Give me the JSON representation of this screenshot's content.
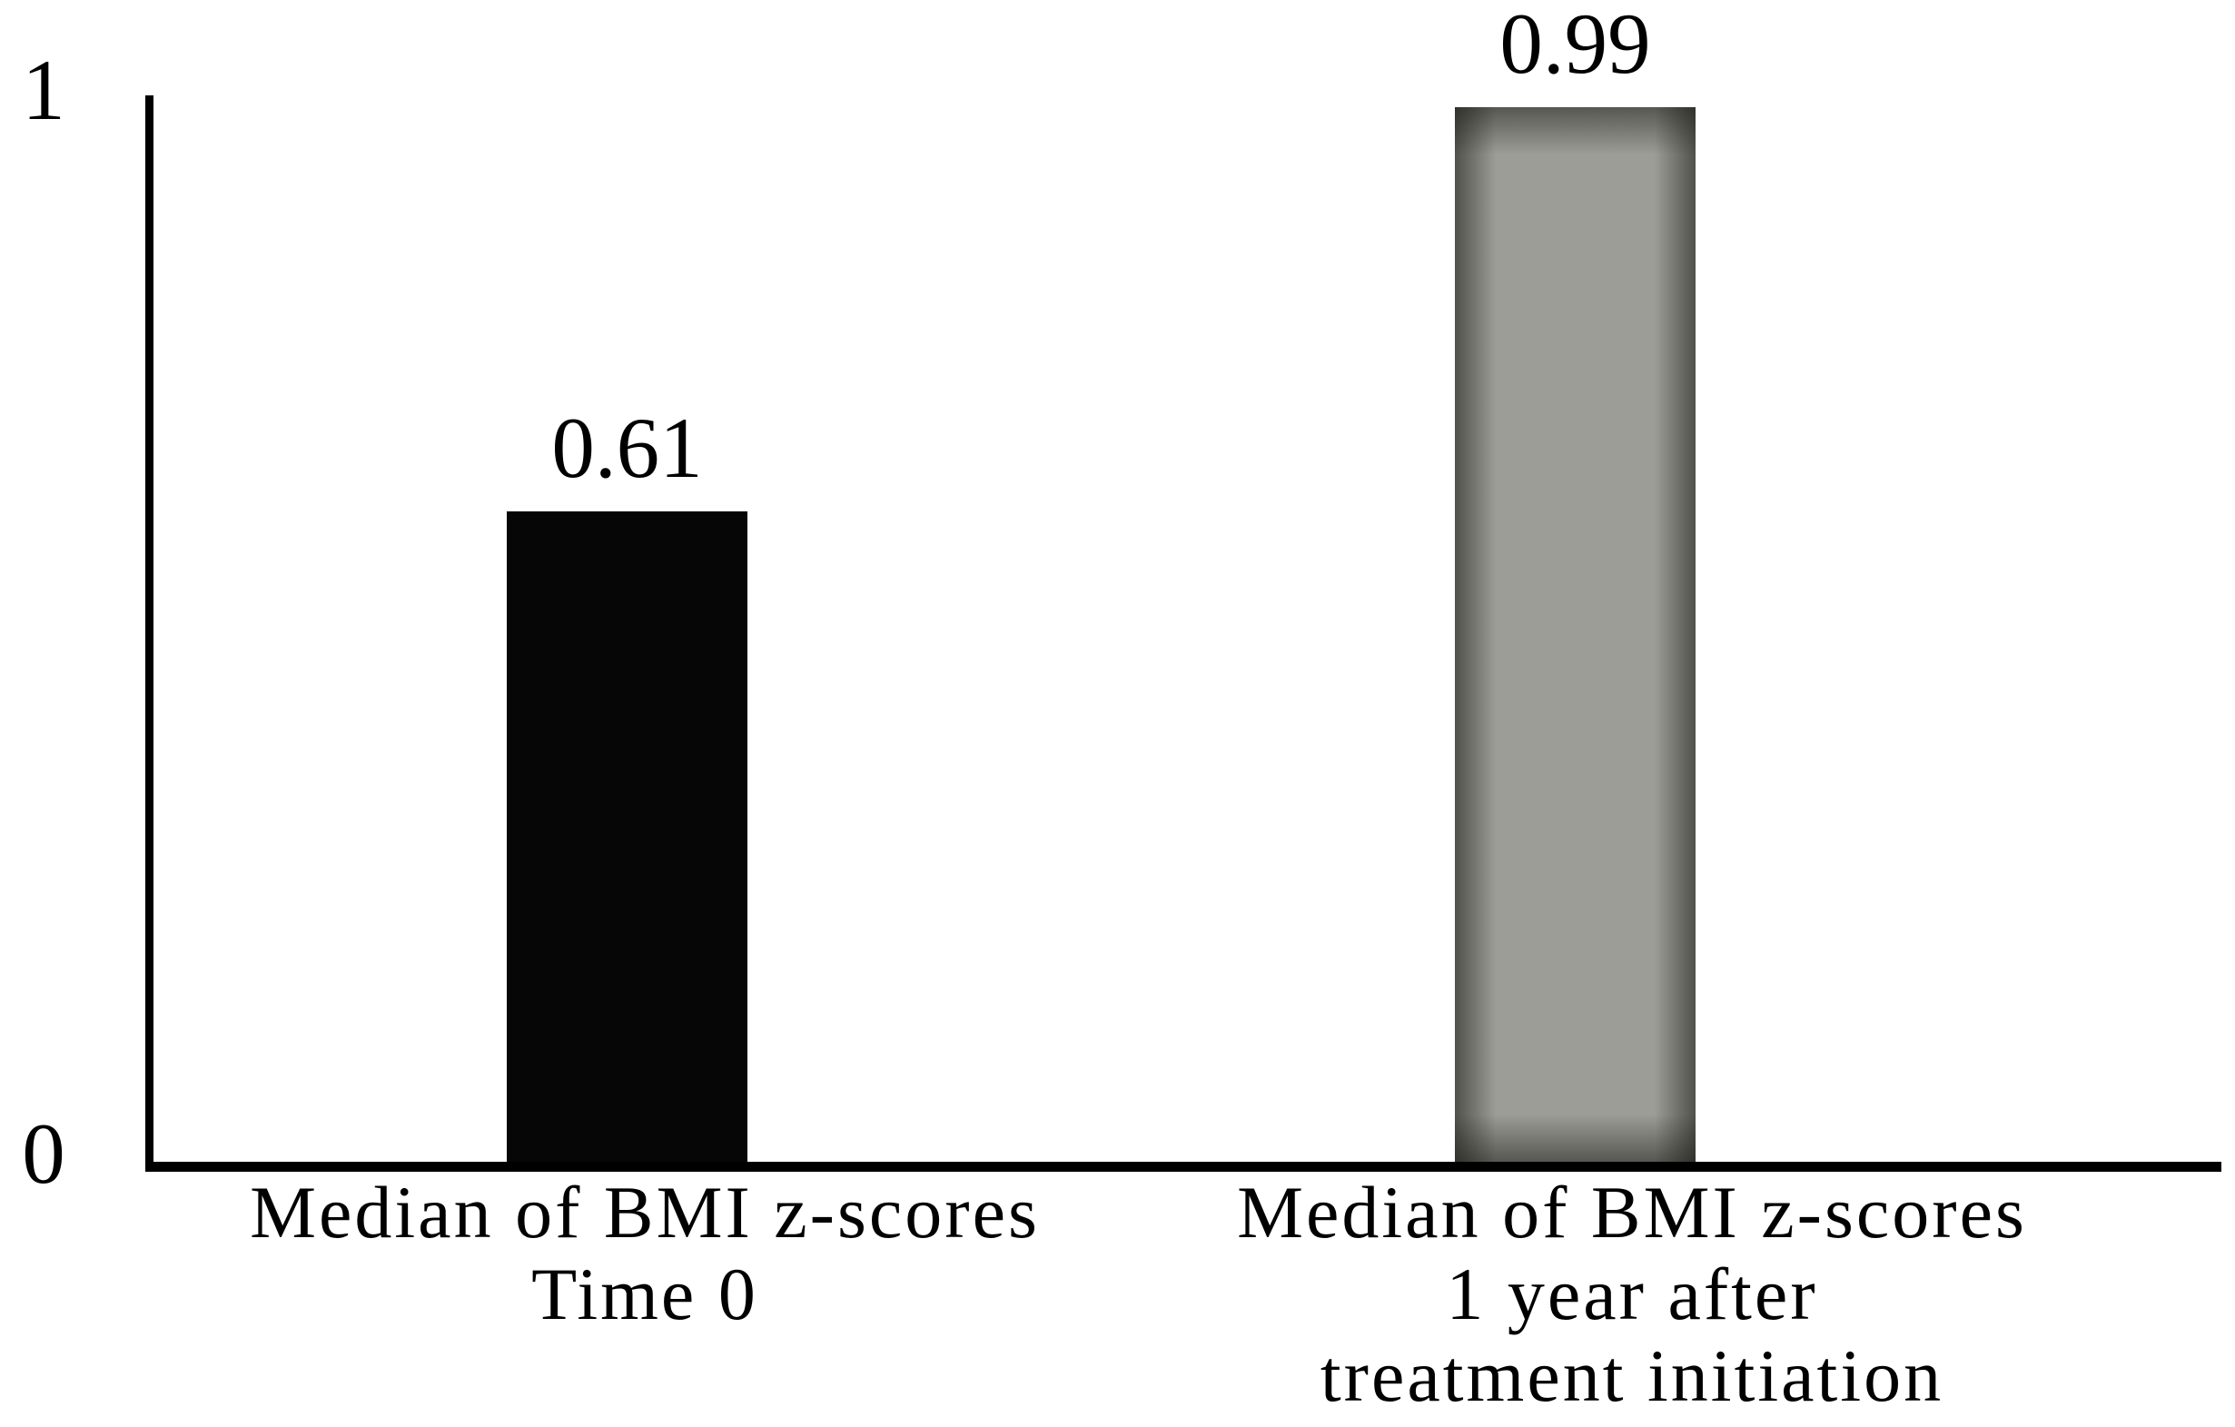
{
  "chart_data": {
    "type": "bar",
    "title": "",
    "xlabel": "",
    "ylabel": "",
    "ylim": [
      0,
      1
    ],
    "grid": false,
    "legend_position": "none",
    "yticks": [
      {
        "value": 1,
        "label": "1"
      },
      {
        "value": 0,
        "label": "0"
      }
    ],
    "categories": [
      {
        "lines": [
          "Median of BMI z-scores",
          "Time 0"
        ]
      },
      {
        "lines": [
          "Median of BMI z-scores",
          "1 year after",
          "treatment initiation"
        ]
      }
    ],
    "values": [
      0.61,
      0.99
    ],
    "value_labels": [
      "0.61",
      "0.99"
    ],
    "bar_colors": [
      "#060606",
      "#9d9d97"
    ],
    "axis_color": "#000000"
  }
}
